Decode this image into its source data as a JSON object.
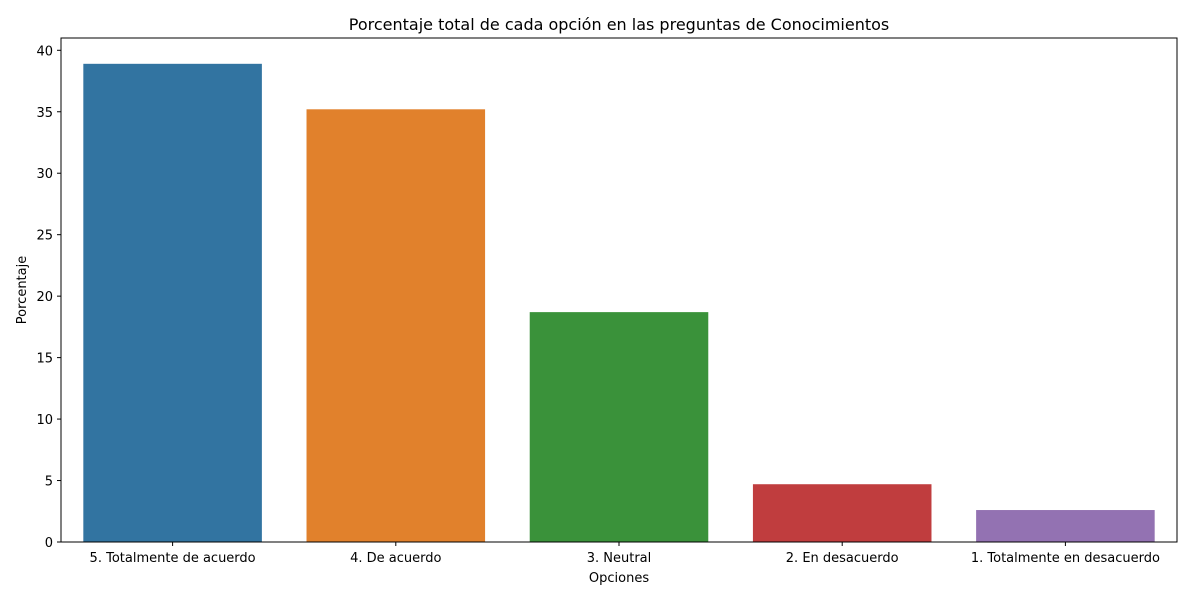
{
  "chart_data": {
    "type": "bar",
    "title": "Porcentaje total de cada opción en las preguntas de Conocimientos",
    "xlabel": "Opciones",
    "ylabel": "Porcentaje",
    "ylim": [
      0,
      41
    ],
    "yticks": [
      0,
      5,
      10,
      15,
      20,
      25,
      30,
      35,
      40
    ],
    "grid": false,
    "categories": [
      "5. Totalmente de acuerdo",
      "4. De acuerdo",
      "3. Neutral",
      "2. En desacuerdo",
      "1. Totalmente en desacuerdo"
    ],
    "values": [
      38.9,
      35.2,
      18.7,
      4.7,
      2.6
    ],
    "colors": [
      "#3274a1",
      "#e1812c",
      "#3a923a",
      "#c03d3e",
      "#9372b2"
    ]
  }
}
